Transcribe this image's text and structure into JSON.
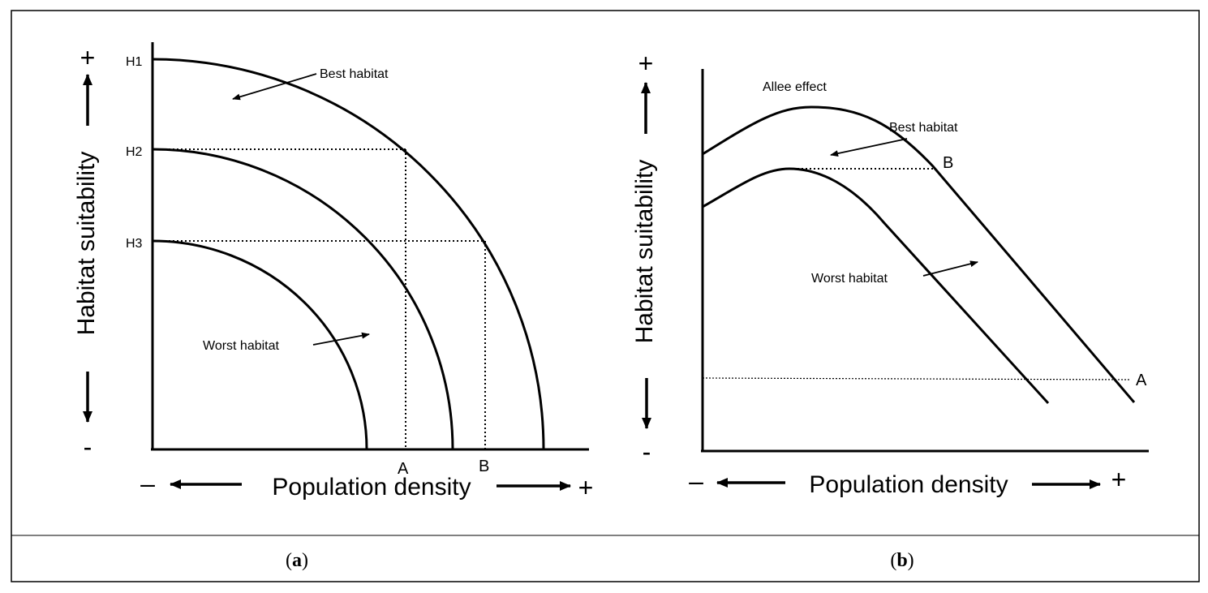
{
  "panel_a": {
    "caption_letter": "a",
    "y_axis_label": "Habitat suitability",
    "x_axis_label": "Population density",
    "y_plus": "+",
    "y_minus": "-",
    "x_minus": "–",
    "x_plus": "+",
    "levels": [
      "H1",
      "H2",
      "H3"
    ],
    "point_a": "A",
    "point_b": "B",
    "best_label": "Best habitat",
    "worst_label": "Worst habitat"
  },
  "panel_b": {
    "caption_letter": "b",
    "y_axis_label": "Habitat suitability",
    "x_axis_label": "Population density",
    "y_plus": "+",
    "y_minus": "-",
    "x_minus": "–",
    "x_plus": "+",
    "allee_label": "Allee effect",
    "best_label": "Best habitat",
    "worst_label": "Worst habitat",
    "point_a": "A",
    "point_b": "B"
  }
}
